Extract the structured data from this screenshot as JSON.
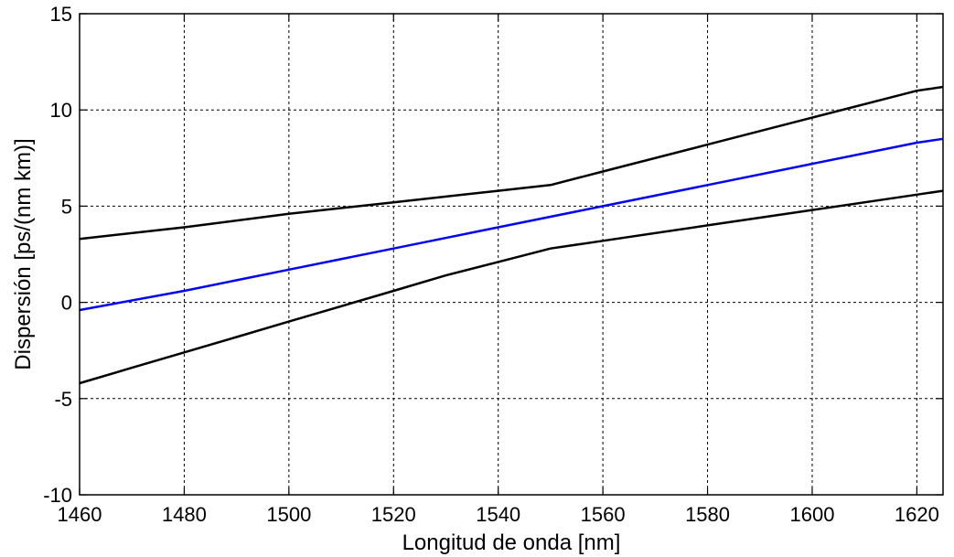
{
  "chart_data": {
    "type": "line",
    "title": "",
    "xlabel": "Longitud de onda [nm]",
    "ylabel": "Dispersión [ps/(nm km)]",
    "xlim": [
      1460,
      1625
    ],
    "ylim": [
      -10,
      15
    ],
    "xticks": [
      1460,
      1480,
      1500,
      1520,
      1540,
      1560,
      1580,
      1600,
      1620
    ],
    "yticks": [
      -10,
      -5,
      0,
      5,
      10,
      15
    ],
    "grid": true,
    "legend": "none",
    "series": [
      {
        "color": "#000000",
        "x": [
          1460,
          1480,
          1500,
          1520,
          1540,
          1550,
          1560,
          1580,
          1600,
          1620,
          1625
        ],
        "y": [
          3.3,
          3.9,
          4.6,
          5.2,
          5.8,
          6.1,
          6.8,
          8.2,
          9.6,
          11.0,
          11.2
        ]
      },
      {
        "color": "#0000ff",
        "x": [
          1460,
          1480,
          1500,
          1520,
          1540,
          1560,
          1580,
          1600,
          1620,
          1625
        ],
        "y": [
          -0.4,
          0.6,
          1.7,
          2.8,
          3.9,
          5.0,
          6.1,
          7.2,
          8.3,
          8.5
        ]
      },
      {
        "color": "#000000",
        "x": [
          1460,
          1470,
          1480,
          1490,
          1500,
          1510,
          1520,
          1530,
          1540,
          1550,
          1560,
          1580,
          1600,
          1620,
          1625
        ],
        "y": [
          -4.2,
          -3.4,
          -2.6,
          -1.8,
          -1.0,
          -0.2,
          0.6,
          1.4,
          2.1,
          2.8,
          3.2,
          4.0,
          4.8,
          5.6,
          5.8
        ]
      }
    ]
  }
}
